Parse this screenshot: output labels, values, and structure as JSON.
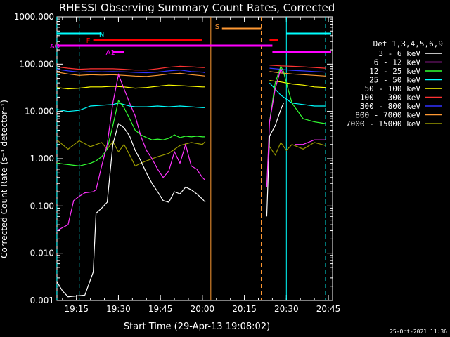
{
  "chart_data": {
    "type": "line",
    "title": "RHESSI Observing Summary Count Rates, Corrected",
    "xlabel": "Start Time (29-Apr-13 19:08:02)",
    "ylabel": "Corrected Count Rate (s⁻¹ detector⁻¹)",
    "x_scale": "time",
    "y_scale": "log",
    "xlim": [
      "19:08:02",
      "20:46:30"
    ],
    "ylim": [
      0.001,
      1000
    ],
    "x_ticks": [
      "19:15",
      "19:30",
      "19:45",
      "20:00",
      "20:15",
      "20:30",
      "20:45"
    ],
    "y_ticks": [
      "0.001",
      "0.010",
      "0.100",
      "1.000",
      "10.000",
      "100.000",
      "1000.000"
    ],
    "legend_title": "Det 1,3,4,5,6,9",
    "legend_position": "right",
    "timestamp": "25-Oct-2021 11:36",
    "series": [
      {
        "name": "3 - 6 keV",
        "color": "#ffffff",
        "segments": [
          {
            "x": [
              "19:08",
              "19:10",
              "19:12",
              "19:18",
              "19:21",
              "19:22",
              "19:24",
              "19:26",
              "19:28",
              "19:30",
              "19:32",
              "19:34",
              "19:36",
              "19:38",
              "19:40",
              "19:42",
              "19:44",
              "19:46",
              "19:48",
              "19:50",
              "19:52",
              "19:54",
              "19:56",
              "19:58",
              "20:00",
              "20:01"
            ],
            "y": [
              0.0025,
              0.0016,
              0.0012,
              0.0013,
              0.004,
              0.07,
              0.09,
              0.12,
              2.0,
              5.5,
              4.5,
              3.0,
              1.5,
              0.9,
              0.5,
              0.3,
              0.2,
              0.13,
              0.12,
              0.2,
              0.18,
              0.25,
              0.22,
              0.18,
              0.14,
              0.12
            ]
          },
          {
            "x": [
              "20:23",
              "20:24",
              "20:26",
              "20:28",
              "20:29"
            ],
            "y": [
              0.06,
              3.0,
              5.0,
              11.0,
              15.0
            ]
          }
        ]
      },
      {
        "name": "6 - 12 keV",
        "color": "#ff33ff",
        "segments": [
          {
            "x": [
              "19:08",
              "19:12",
              "19:14",
              "19:16",
              "19:18",
              "19:21",
              "19:22",
              "19:24",
              "19:26",
              "19:28",
              "19:30",
              "19:32",
              "19:34",
              "19:36",
              "19:38",
              "19:40",
              "19:42",
              "19:44",
              "19:46",
              "19:48",
              "19:50",
              "19:52",
              "19:54",
              "19:56",
              "19:58",
              "20:00",
              "20:01"
            ],
            "y": [
              0.03,
              0.04,
              0.13,
              0.16,
              0.19,
              0.2,
              0.22,
              0.7,
              2.0,
              15.0,
              60.0,
              30.0,
              15.0,
              8.0,
              3.0,
              1.5,
              1.0,
              0.6,
              0.4,
              0.55,
              1.4,
              0.8,
              2.0,
              0.7,
              0.6,
              0.4,
              0.35
            ]
          },
          {
            "x": [
              "20:23",
              "20:24",
              "20:26",
              "20:28",
              "20:29"
            ],
            "y": [
              0.25,
              6.0,
              30.0,
              80.0,
              60.0
            ]
          },
          {
            "x": [
              "20:33",
              "20:36",
              "20:40",
              "20:44"
            ],
            "y": [
              2.0,
              2.0,
              2.5,
              2.5
            ]
          }
        ]
      },
      {
        "name": "12 - 25 keV",
        "color": "#33ff33",
        "segments": [
          {
            "x": [
              "19:08",
              "19:12",
              "19:16",
              "19:20",
              "19:22",
              "19:24",
              "19:26",
              "19:28",
              "19:30",
              "19:32",
              "19:34",
              "19:36",
              "19:38",
              "19:40",
              "19:42",
              "19:44",
              "19:46",
              "19:48",
              "19:50",
              "19:52",
              "19:54",
              "19:56",
              "19:58",
              "20:00",
              "20:01"
            ],
            "y": [
              0.8,
              0.75,
              0.7,
              0.8,
              0.9,
              1.1,
              1.6,
              5.0,
              17.0,
              12.0,
              7.0,
              4.0,
              3.2,
              2.8,
              2.5,
              2.6,
              2.5,
              2.7,
              3.2,
              2.8,
              3.0,
              2.9,
              3.0,
              2.9,
              2.9
            ]
          },
          {
            "x": [
              "20:24",
              "20:26",
              "20:28",
              "20:29",
              "20:30",
              "20:32",
              "20:36",
              "20:40",
              "20:44"
            ],
            "y": [
              6.0,
              40.0,
              90.0,
              70.0,
              40.0,
              15.0,
              7.0,
              6.0,
              5.5
            ]
          }
        ]
      },
      {
        "name": "25 - 50 keV",
        "color": "#00ffff",
        "segments": [
          {
            "x": [
              "19:08",
              "19:12",
              "19:16",
              "19:20",
              "19:24",
              "19:28",
              "19:30",
              "19:32",
              "19:34",
              "19:36",
              "19:40",
              "19:44",
              "19:48",
              "19:52",
              "19:56",
              "20:00",
              "20:01"
            ],
            "y": [
              11.0,
              10.0,
              10.5,
              13.0,
              13.5,
              14.0,
              15.0,
              14.0,
              13.0,
              12.5,
              12.5,
              13.0,
              12.5,
              13.0,
              12.5,
              12.0,
              12.0
            ]
          },
          {
            "x": [
              "20:24",
              "20:28",
              "20:32",
              "20:36",
              "20:40",
              "20:44"
            ],
            "y": [
              40.0,
              22.0,
              15.0,
              14.0,
              13.0,
              13.0
            ]
          }
        ]
      },
      {
        "name": "50 - 100 keV",
        "color": "#ffff00",
        "segments": [
          {
            "x": [
              "19:08",
              "19:12",
              "19:16",
              "19:20",
              "19:24",
              "19:28",
              "19:32",
              "19:36",
              "19:40",
              "19:44",
              "19:48",
              "19:52",
              "19:56",
              "20:00",
              "20:01"
            ],
            "y": [
              32.0,
              30.0,
              31.0,
              33.0,
              33.0,
              34.0,
              33.0,
              31.0,
              32.0,
              34.0,
              36.0,
              35.0,
              34.0,
              33.0,
              33.0
            ]
          },
          {
            "x": [
              "20:24",
              "20:28",
              "20:32",
              "20:36",
              "20:40",
              "20:44"
            ],
            "y": [
              45.0,
              42.0,
              38.0,
              36.0,
              33.0,
              32.0
            ]
          }
        ]
      },
      {
        "name": "100 - 300 keV",
        "color": "#ff3333",
        "segments": [
          {
            "x": [
              "19:08",
              "19:12",
              "19:16",
              "19:20",
              "19:24",
              "19:28",
              "19:32",
              "19:36",
              "19:40",
              "19:44",
              "19:48",
              "19:52",
              "19:56",
              "20:00",
              "20:01"
            ],
            "y": [
              88.0,
              82.0,
              78.0,
              80.0,
              80.0,
              80.0,
              78.0,
              75.0,
              75.0,
              80.0,
              86.0,
              90.0,
              88.0,
              85.0,
              85.0
            ]
          },
          {
            "x": [
              "20:24",
              "20:28",
              "20:32",
              "20:36",
              "20:40",
              "20:44"
            ],
            "y": [
              95.0,
              92.0,
              90.0,
              88.0,
              85.0,
              82.0
            ]
          }
        ]
      },
      {
        "name": "300 - 800 keV",
        "color": "#3333ff",
        "segments": [
          {
            "x": [
              "19:08",
              "19:12",
              "19:16",
              "19:20",
              "19:24",
              "19:28",
              "19:32",
              "19:36",
              "19:40",
              "19:44",
              "19:48",
              "19:52",
              "19:56",
              "20:00",
              "20:01"
            ],
            "y": [
              78.0,
              72.0,
              68.0,
              70.0,
              69.0,
              70.0,
              69.0,
              67.0,
              66.0,
              68.0,
              72.0,
              75.0,
              70.0,
              68.0,
              66.0
            ]
          },
          {
            "x": [
              "20:24",
              "20:28",
              "20:32",
              "20:36",
              "20:40",
              "20:44"
            ],
            "y": [
              82.0,
              78.0,
              74.0,
              72.0,
              70.0,
              68.0
            ]
          }
        ]
      },
      {
        "name": "800 - 7000 keV",
        "color": "#ff9933",
        "segments": [
          {
            "x": [
              "19:08",
              "19:12",
              "19:16",
              "19:20",
              "19:24",
              "19:28",
              "19:32",
              "19:36",
              "19:40",
              "19:44",
              "19:48",
              "19:52",
              "19:56",
              "20:00",
              "20:01"
            ],
            "y": [
              68.0,
              62.0,
              58.0,
              60.0,
              59.0,
              60.0,
              58.0,
              56.0,
              55.0,
              58.0,
              62.0,
              64.0,
              60.0,
              57.0,
              56.0
            ]
          },
          {
            "x": [
              "20:24",
              "20:28",
              "20:32",
              "20:36",
              "20:40",
              "20:44"
            ],
            "y": [
              70.0,
              65.0,
              62.0,
              60.0,
              58.0,
              56.0
            ]
          }
        ]
      },
      {
        "name": "7000 - 15000 keV",
        "color": "#999900",
        "segments": [
          {
            "x": [
              "19:08",
              "19:12",
              "19:16",
              "19:20",
              "19:24",
              "19:26",
              "19:28",
              "19:30",
              "19:32",
              "19:34",
              "19:36",
              "19:38",
              "19:40",
              "19:44",
              "19:48",
              "19:52",
              "19:56",
              "20:00",
              "20:01"
            ],
            "y": [
              2.5,
              1.6,
              2.4,
              1.8,
              2.2,
              1.6,
              2.3,
              1.4,
              2.0,
              1.2,
              0.7,
              0.8,
              0.9,
              1.1,
              1.3,
              1.9,
              2.2,
              2.0,
              2.3
            ]
          },
          {
            "x": [
              "20:24",
              "20:26",
              "20:28",
              "20:30",
              "20:32",
              "20:36",
              "20:40",
              "20:44"
            ],
            "y": [
              1.8,
              1.2,
              2.2,
              1.5,
              2.0,
              1.6,
              2.2,
              1.9
            ]
          }
        ]
      }
    ],
    "flag_bars": [
      {
        "label": "N",
        "color": "#00ffff",
        "ranges": [
          [
            "19:08",
            "19:24"
          ],
          [
            "20:30",
            "20:46"
          ]
        ]
      },
      {
        "label": "S",
        "color": "#ff9933",
        "ranges": [
          [
            "20:07",
            "20:21"
          ]
        ]
      },
      {
        "label": "F",
        "color": "#ff0000",
        "ranges": [
          [
            "19:21",
            "20:00"
          ],
          [
            "20:24",
            "20:27"
          ]
        ]
      },
      {
        "label": "AO",
        "color": "#ff00ff",
        "ranges": [
          [
            "19:08",
            "20:25"
          ]
        ]
      },
      {
        "label": "A1",
        "color": "#ff00ff",
        "ranges": [
          [
            "19:28",
            "19:32"
          ],
          [
            "20:25",
            "20:46"
          ]
        ]
      }
    ],
    "vlines": [
      {
        "x": "19:08",
        "color": "#00ffff",
        "style": "dashed"
      },
      {
        "x": "19:16",
        "color": "#00ffff",
        "style": "dashed"
      },
      {
        "x": "20:03",
        "color": "#ff9933",
        "style": "solid"
      },
      {
        "x": "20:21",
        "color": "#ff9933",
        "style": "dashed"
      },
      {
        "x": "20:30",
        "color": "#00ffff",
        "style": "solid"
      },
      {
        "x": "20:44",
        "color": "#00ffff",
        "style": "dashed"
      }
    ]
  }
}
